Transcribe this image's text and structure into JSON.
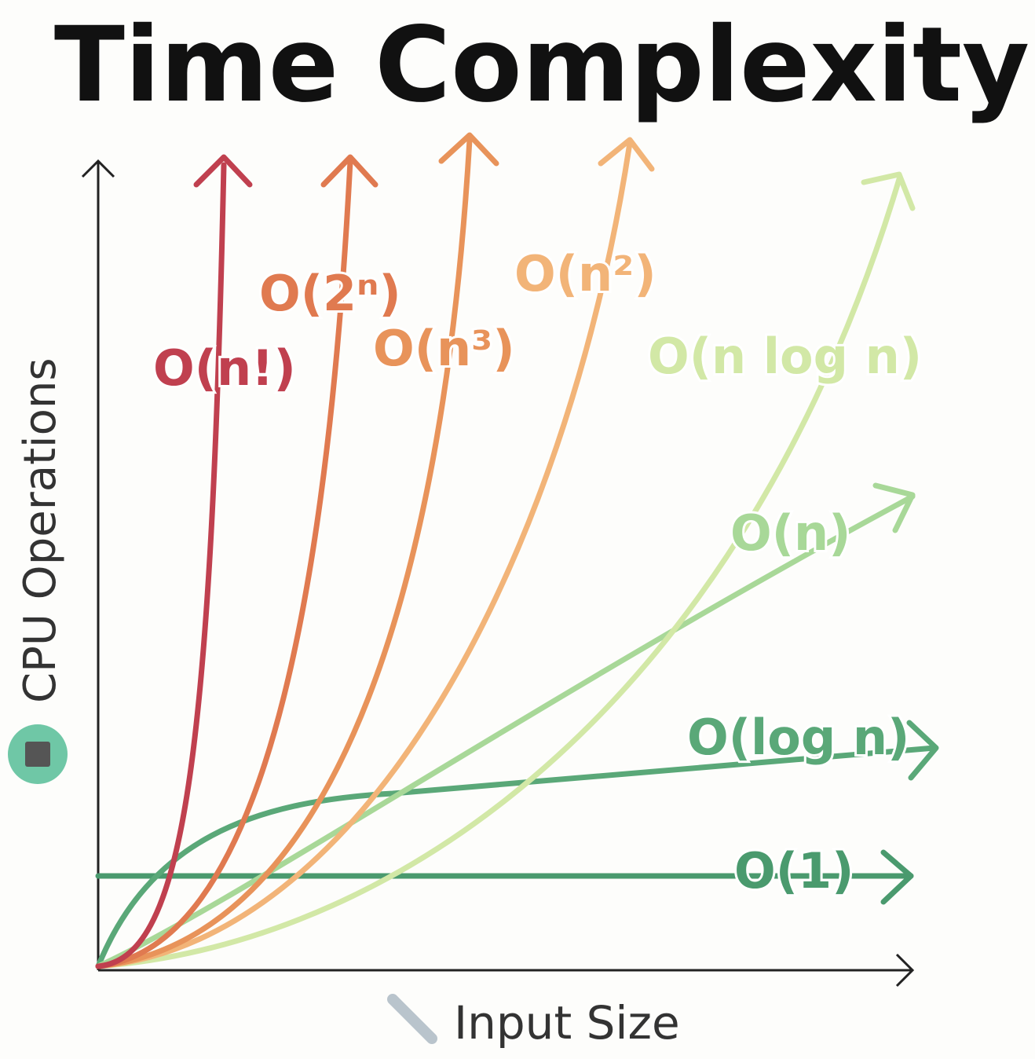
{
  "title": "Time Complexity",
  "y_axis_label": "CPU Operations",
  "x_axis_label": "Input Size",
  "curves": [
    {
      "label": "O(n!)"
    },
    {
      "label": "O(2ⁿ)"
    },
    {
      "label": "O(n³)"
    },
    {
      "label": "O(n²)"
    },
    {
      "label": "O(n log n)"
    },
    {
      "label": "O(n)"
    },
    {
      "label": "O(log n)"
    },
    {
      "label": "O(1)"
    }
  ]
}
